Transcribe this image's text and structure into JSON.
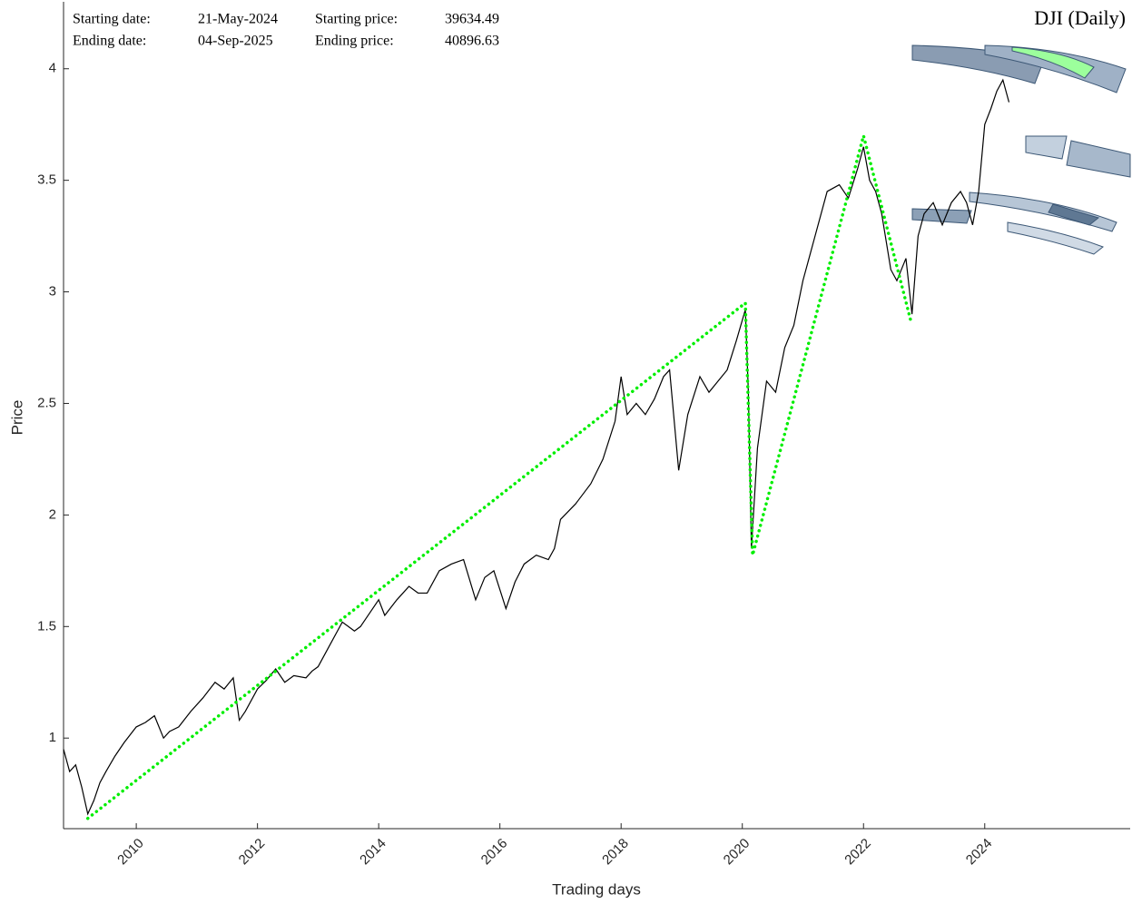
{
  "chart_data": {
    "type": "line",
    "title": "DJI (Daily)",
    "x_label": "Trading days",
    "y_label": "Price",
    "annotations": [
      [
        "Starting date:",
        "21-May-2024",
        "Starting price:",
        "39634.49"
      ],
      [
        "Ending date:",
        "04-Sep-2025",
        "Ending price:",
        "40896.63"
      ]
    ],
    "xlim": [
      2008.8,
      2026.4
    ],
    "ylim": [
      0.594,
      4.3
    ],
    "xticks": [
      2010,
      2012,
      2014,
      2016,
      2018,
      2020,
      2022,
      2024
    ],
    "yticks": [
      1,
      1.5,
      2,
      2.5,
      3,
      3.5,
      4
    ],
    "grid": false,
    "series": [
      {
        "color": "#000000",
        "line_style": "solid",
        "x": [
          2008.8,
          2008.9,
          2009.0,
          2009.1,
          2009.2,
          2009.3,
          2009.4,
          2009.5,
          2009.65,
          2009.8,
          2010.0,
          2010.15,
          2010.3,
          2010.45,
          2010.55,
          2010.7,
          2010.9,
          2011.1,
          2011.3,
          2011.45,
          2011.6,
          2011.7,
          2011.8,
          2012.0,
          2012.15,
          2012.3,
          2012.45,
          2012.6,
          2012.8,
          2012.9,
          2013.0,
          2013.2,
          2013.4,
          2013.6,
          2013.7,
          2013.85,
          2014.0,
          2014.1,
          2014.3,
          2014.5,
          2014.65,
          2014.8,
          2015.0,
          2015.2,
          2015.4,
          2015.6,
          2015.75,
          2015.9,
          2016.1,
          2016.25,
          2016.4,
          2016.6,
          2016.8,
          2016.9,
          2017.0,
          2017.25,
          2017.5,
          2017.7,
          2017.9,
          2018.0,
          2018.1,
          2018.25,
          2018.4,
          2018.55,
          2018.7,
          2018.8,
          2018.95,
          2019.1,
          2019.3,
          2019.45,
          2019.6,
          2019.75,
          2019.9,
          2020.05,
          2020.1,
          2020.15,
          2020.25,
          2020.4,
          2020.55,
          2020.7,
          2020.85,
          2021.0,
          2021.2,
          2021.4,
          2021.6,
          2021.75,
          2021.9,
          2022.0,
          2022.1,
          2022.2,
          2022.3,
          2022.45,
          2022.55,
          2022.7,
          2022.8,
          2022.9,
          2023.0,
          2023.15,
          2023.3,
          2023.45,
          2023.6,
          2023.7,
          2023.8,
          2023.9,
          2024.0,
          2024.1,
          2024.2,
          2024.3,
          2024.4
        ],
        "values": [
          0.95,
          0.85,
          0.88,
          0.78,
          0.66,
          0.72,
          0.8,
          0.85,
          0.92,
          0.98,
          1.05,
          1.07,
          1.1,
          1.0,
          1.03,
          1.05,
          1.12,
          1.18,
          1.25,
          1.22,
          1.27,
          1.08,
          1.12,
          1.22,
          1.26,
          1.31,
          1.25,
          1.28,
          1.27,
          1.3,
          1.32,
          1.42,
          1.52,
          1.48,
          1.5,
          1.56,
          1.62,
          1.55,
          1.62,
          1.68,
          1.65,
          1.65,
          1.75,
          1.78,
          1.8,
          1.62,
          1.72,
          1.75,
          1.58,
          1.7,
          1.78,
          1.82,
          1.8,
          1.85,
          1.98,
          2.05,
          2.14,
          2.25,
          2.42,
          2.62,
          2.45,
          2.5,
          2.45,
          2.52,
          2.62,
          2.65,
          2.2,
          2.45,
          2.62,
          2.55,
          2.6,
          2.65,
          2.78,
          2.92,
          2.55,
          1.85,
          2.3,
          2.6,
          2.55,
          2.75,
          2.85,
          3.05,
          3.25,
          3.45,
          3.48,
          3.42,
          3.55,
          3.65,
          3.5,
          3.45,
          3.35,
          3.1,
          3.05,
          3.15,
          2.9,
          3.25,
          3.35,
          3.4,
          3.3,
          3.4,
          3.45,
          3.4,
          3.3,
          3.45,
          3.75,
          3.82,
          3.9,
          3.95,
          3.85
        ]
      },
      {
        "color": "#00ee00",
        "line_style": "dotted",
        "x": [
          2009.2,
          2020.05,
          2020.17,
          2022.0,
          2022.78
        ],
        "values": [
          0.64,
          2.95,
          1.82,
          3.7,
          2.87
        ]
      }
    ]
  }
}
